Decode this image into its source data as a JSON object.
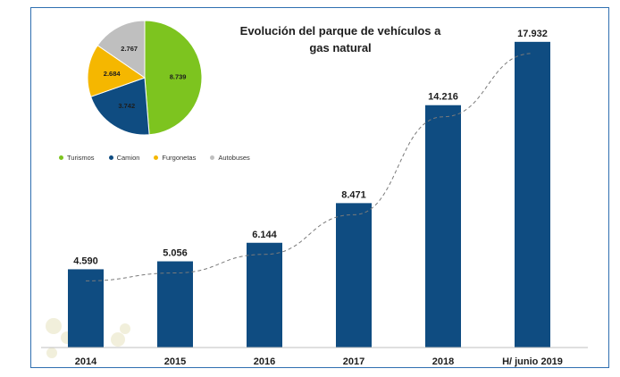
{
  "chart_data": [
    {
      "type": "bar",
      "title_lines": [
        "Evolución del parque de vehículos a",
        "gas natural"
      ],
      "categories": [
        "2014",
        "2015",
        "2016",
        "2017",
        "2018",
        "H/ junio 2019"
      ],
      "values": [
        4590,
        5056,
        6144,
        8471,
        14216,
        17932
      ],
      "value_labels": [
        "4.590",
        "5.056",
        "6.144",
        "8.471",
        "14.216",
        "17.932"
      ],
      "ylim": [
        0,
        18500
      ],
      "trendline": "dashed",
      "grid": false,
      "colors": {
        "bar": "#0f4c81",
        "trend": "#7a7a7a"
      }
    },
    {
      "type": "pie",
      "labels": [
        "Turismos",
        "Camion",
        "Furgonetas",
        "Autobuses"
      ],
      "values": [
        8739,
        3742,
        2684,
        2767
      ],
      "value_labels": [
        "8.739",
        "3.742",
        "2.684",
        "2.767"
      ],
      "colors": [
        "#7dc41f",
        "#0f4c81",
        "#f5b700",
        "#bfbfbf"
      ],
      "legend_position": "bottom"
    }
  ]
}
